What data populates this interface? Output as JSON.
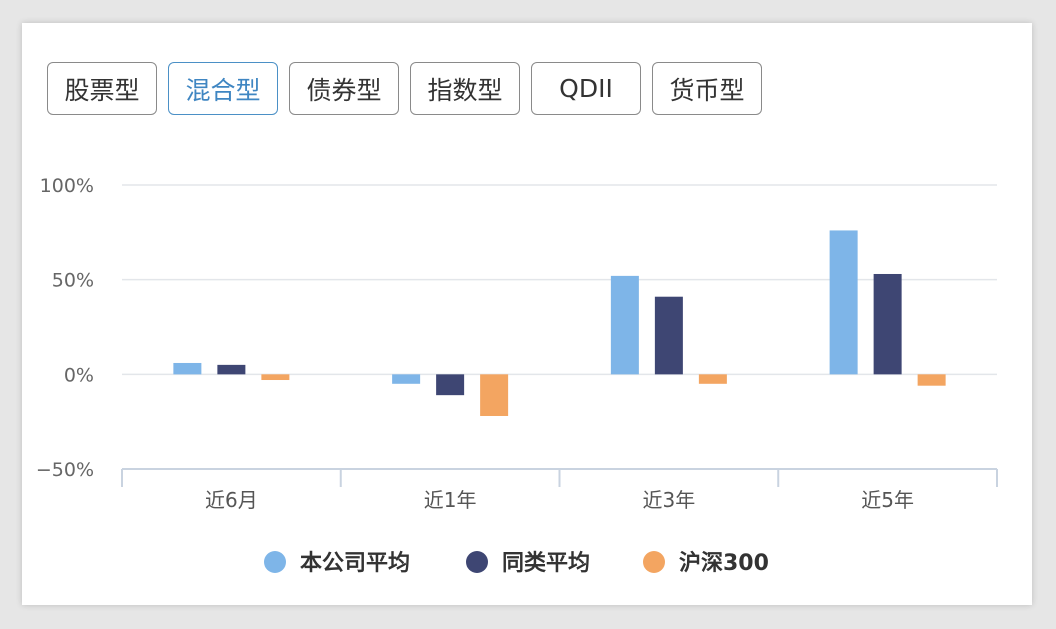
{
  "tabs": [
    {
      "label": "股票型",
      "active": false
    },
    {
      "label": "混合型",
      "active": true
    },
    {
      "label": "债券型",
      "active": false
    },
    {
      "label": "指数型",
      "active": false
    },
    {
      "label": "QDII",
      "active": false
    },
    {
      "label": "货币型",
      "active": false
    }
  ],
  "colors": {
    "series1": "#7eb5e8",
    "series2": "#3e4673",
    "series3": "#f3a561",
    "active_tab": "#3f86c2",
    "grid": "#e3e6ea",
    "axis": "#c9d3e0"
  },
  "chart_data": {
    "type": "bar",
    "categories": [
      "近6月",
      "近1年",
      "近3年",
      "近5年"
    ],
    "series": [
      {
        "name": "本公司平均",
        "values": [
          6,
          -5,
          52,
          76
        ]
      },
      {
        "name": "同类平均",
        "values": [
          5,
          -11,
          41,
          53
        ]
      },
      {
        "name": "沪深300",
        "values": [
          -3,
          -22,
          -5,
          -6
        ]
      }
    ],
    "y_ticks": [
      "100%",
      "50%",
      "0%",
      "−50%"
    ],
    "ylim": [
      -50,
      100
    ],
    "grid": true,
    "legend_position": "bottom-center"
  }
}
